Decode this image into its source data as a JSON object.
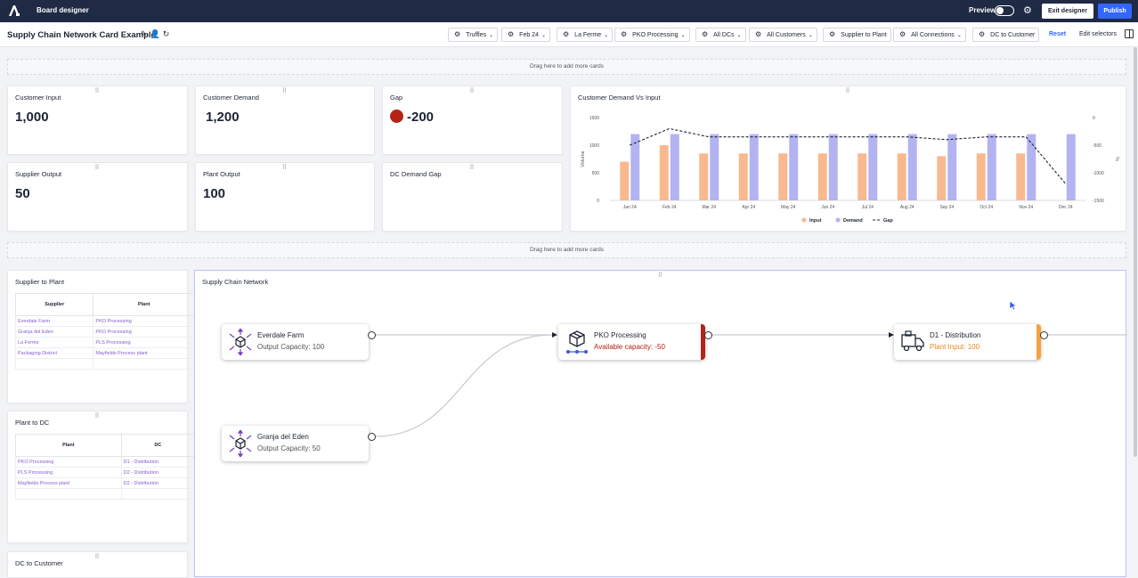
{
  "topbar": {
    "title": "Board designer",
    "preview_label": "Preview",
    "exit_label": "Exit designer",
    "publish_label": "Publish"
  },
  "subbar": {
    "page_title": "Supply Chain Network Card Example",
    "filters": [
      "Truffles",
      "Feb 24",
      "La Ferme",
      "PKO Processing",
      "All DCs",
      "All Customers",
      "Supplier to Plant",
      "All Connections",
      "DC to Customer"
    ],
    "reset_label": "Reset",
    "edit_selectors_label": "Edit selectors"
  },
  "drop_zone_label": "Drag here to add more cards",
  "kpis": {
    "customer_input": {
      "title": "Customer Input",
      "value": "1,000"
    },
    "customer_demand": {
      "title": "Customer Demand",
      "value": "1,200"
    },
    "gap": {
      "title": "Gap",
      "value": "-200"
    },
    "supplier_output": {
      "title": "Supplier Output",
      "value": "50"
    },
    "plant_output": {
      "title": "Plant Output",
      "value": "100"
    },
    "dc_demand_gap": {
      "title": "DC Demand Gap",
      "value": ""
    }
  },
  "chart_data": {
    "type": "bar",
    "title": "Customer Demand Vs Input",
    "ylabel": "Volume",
    "y2label": "%",
    "categories": [
      "Jan 24",
      "Feb 24",
      "Mar 24",
      "Apr 24",
      "May 24",
      "Jun 24",
      "Jul 24",
      "Aug 24",
      "Sep 24",
      "Oct 24",
      "Nov 24",
      "Dec 24"
    ],
    "yticks": [
      0,
      500,
      1000,
      1500
    ],
    "y2ticks": [
      0,
      -500,
      -1000,
      -1500
    ],
    "ylim": [
      0,
      1500
    ],
    "y2lim": [
      -1500,
      0
    ],
    "legend_position": "bottom",
    "series": [
      {
        "name": "Input",
        "kind": "bar",
        "color": "#f8b98f",
        "values": [
          700,
          1000,
          850,
          850,
          850,
          850,
          850,
          850,
          800,
          850,
          850,
          0
        ]
      },
      {
        "name": "Demand",
        "kind": "bar",
        "color": "#b3b3f2",
        "values": [
          1200,
          1200,
          1200,
          1200,
          1200,
          1200,
          1200,
          1200,
          1200,
          1200,
          1200,
          1200
        ]
      },
      {
        "name": "Gap",
        "kind": "line",
        "axis": "right",
        "color": "#1d2433",
        "values": [
          -500,
          -200,
          -350,
          -350,
          -350,
          -350,
          -350,
          -350,
          -400,
          -350,
          -350,
          -1200
        ]
      }
    ]
  },
  "supplier_to_plant": {
    "title": "Supplier to Plant",
    "columns": [
      "Supplier",
      "Plant"
    ],
    "rows": [
      [
        "Everdale Farm",
        "PKO Processing"
      ],
      [
        "Granja del Eden",
        "PKO Processing"
      ],
      [
        "La Ferme",
        "PLS Processing"
      ],
      [
        "Packaging District",
        "Mayfields Process plant"
      ]
    ]
  },
  "plant_to_dc": {
    "title": "Plant to DC",
    "columns": [
      "Plant",
      "DC"
    ],
    "rows": [
      [
        "PKO Processing",
        "D1 - Distribution"
      ],
      [
        "PLS Processing",
        "D2 - Distribution"
      ],
      [
        "Mayfields Process plant",
        "D2 - Distribution"
      ]
    ]
  },
  "dc_to_customer": {
    "title": "DC to Customer"
  },
  "network": {
    "title": "Supply Chain Network",
    "nodes": [
      {
        "name": "Everdale Farm",
        "sub": "Output Capacity: 100"
      },
      {
        "name": "Granja del Eden",
        "sub": "Output Capacity: 50"
      },
      {
        "name": "PKO Processing",
        "sub": "Available capacity: -50",
        "stripe": "#b42318"
      },
      {
        "name": "D1 - Distribution",
        "sub": "Plant Input: 100",
        "stripe": "#f5a140"
      }
    ]
  }
}
